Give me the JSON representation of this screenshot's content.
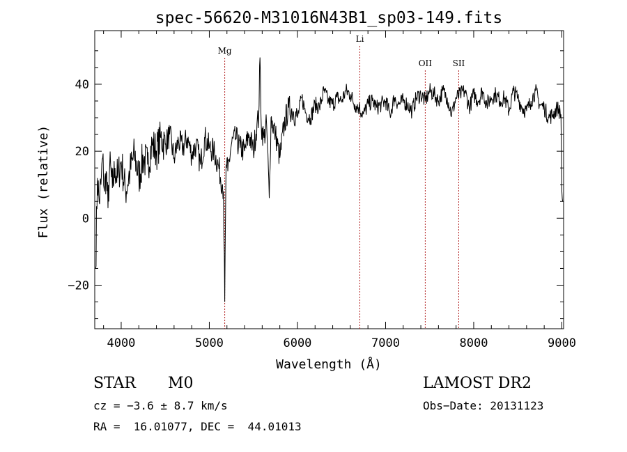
{
  "chart_data": {
    "type": "line",
    "title": "spec-56620-M31016N43B1_sp03-149.fits",
    "xlabel": "Wavelength (Å)",
    "ylabel": "Flux (relative)",
    "xlim": [
      3700,
      9020
    ],
    "ylim": [
      -33,
      56
    ],
    "xticks": [
      4000,
      5000,
      6000,
      7000,
      8000,
      9000
    ],
    "yticks": [
      -20,
      0,
      20,
      40
    ],
    "grid": false,
    "line_color": "#000000",
    "marker_color": "#b22222",
    "lines": [
      {
        "label": "Mg",
        "x": 5175
      },
      {
        "label": "Li",
        "x": 6708
      },
      {
        "label": "OII",
        "x": 7450
      },
      {
        "label": "SII",
        "x": 7830
      }
    ],
    "series": [
      {
        "x": [
          3710,
          3730,
          3750,
          3770,
          3790,
          3810,
          3830,
          3850,
          3870,
          3900,
          3930,
          3960,
          4000,
          4050,
          4100,
          4150,
          4200,
          4250,
          4300,
          4350,
          4400,
          4450,
          4500,
          4550,
          4600,
          4650,
          4700,
          4750,
          4800,
          4850,
          4900,
          4950,
          5000,
          5050,
          5100,
          5150,
          5160,
          5175,
          5190,
          5210,
          5250,
          5300,
          5350,
          5400,
          5450,
          5500,
          5540,
          5560,
          5575,
          5590,
          5620,
          5650,
          5680,
          5700,
          5750,
          5800,
          5850,
          5900,
          5950,
          6000,
          6050,
          6100,
          6150,
          6200,
          6250,
          6300,
          6350,
          6400,
          6450,
          6500,
          6550,
          6600,
          6650,
          6700,
          6750,
          6800,
          6850,
          6900,
          6950,
          7000,
          7050,
          7100,
          7150,
          7200,
          7250,
          7300,
          7350,
          7400,
          7450,
          7500,
          7550,
          7600,
          7650,
          7700,
          7750,
          7800,
          7850,
          7900,
          7950,
          8000,
          8050,
          8100,
          8150,
          8200,
          8250,
          8300,
          8350,
          8400,
          8450,
          8500,
          8550,
          8600,
          8650,
          8700,
          8750,
          8800,
          8850,
          8900,
          8950,
          8990,
          9000,
          9010
        ],
        "y": [
          -15,
          12,
          5,
          10,
          18,
          8,
          14,
          3,
          16,
          9,
          15,
          12,
          17,
          8,
          14,
          19,
          12,
          18,
          16,
          22,
          20,
          24,
          22,
          25,
          18,
          23,
          21,
          24,
          19,
          22,
          16,
          24,
          21,
          20,
          16,
          10,
          8,
          -25,
          16,
          14,
          22,
          24,
          21,
          20,
          25,
          20,
          28,
          30,
          48,
          27,
          24,
          28,
          6,
          30,
          25,
          18,
          28,
          33,
          32,
          30,
          36,
          31,
          30,
          34,
          33,
          38,
          35,
          34,
          36,
          35,
          38,
          37,
          34,
          33,
          31,
          34,
          35,
          33,
          34,
          35,
          31,
          36,
          34,
          35,
          34,
          32,
          36,
          37,
          35,
          38,
          37,
          35,
          38,
          36,
          31,
          36,
          37,
          38,
          33,
          37,
          35,
          38,
          34,
          36,
          37,
          35,
          36,
          32,
          38,
          36,
          33,
          32,
          35,
          38,
          34,
          33,
          30,
          31,
          33,
          31,
          8,
          5
        ]
      }
    ]
  },
  "info": {
    "object_class": "STAR",
    "subclass": "M0",
    "survey": "LAMOST DR2",
    "cz": "cz = −3.6 ± 8.7 km/s",
    "obs_date": "Obs−Date: 20131123",
    "radec": "RA =  16.01077, DEC =  44.01013"
  }
}
